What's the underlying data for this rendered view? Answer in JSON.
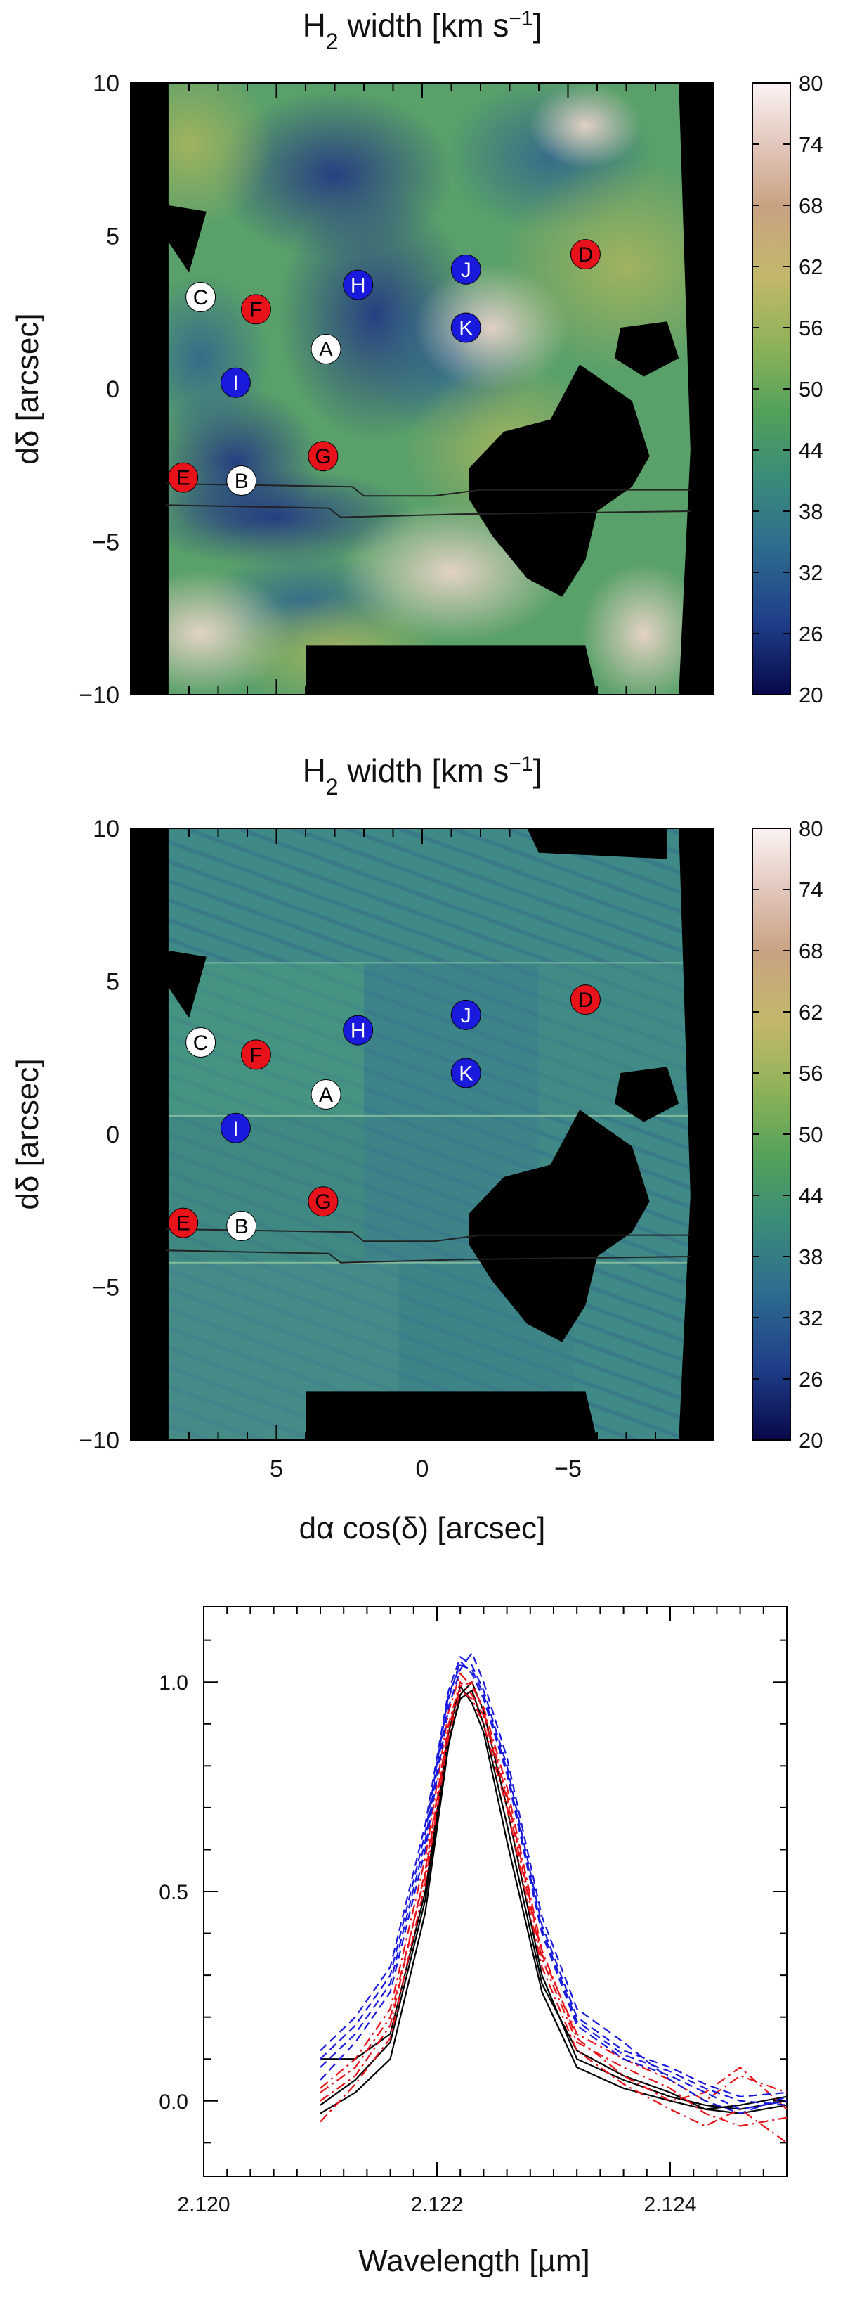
{
  "chart_data": [
    {
      "type": "heatmap",
      "title": "H₂ width [km s⁻¹]",
      "title_parts": {
        "pre": "H",
        "sub": "2",
        "mid": " width [km s",
        "sup": "−1",
        "post": "]"
      },
      "ylabel": "dδ [arcsec]",
      "xlabel": "",
      "xlim": [
        10,
        -10
      ],
      "ylim": [
        -10,
        10
      ],
      "x_ticks": [
        5,
        0,
        -5
      ],
      "y_ticks": [
        10,
        5,
        0,
        -5,
        -10
      ],
      "y_tick_labels": [
        "10",
        "5",
        "0",
        "−5",
        "−10"
      ],
      "colorbar": {
        "min": 20,
        "max": 80,
        "ticks": [
          80,
          74,
          68,
          62,
          56,
          50,
          44,
          38,
          32,
          26,
          20
        ]
      },
      "markers": [
        {
          "label": "A",
          "x": 3.3,
          "y": 1.3,
          "color": "#ffffff",
          "text_color": "#000000"
        },
        {
          "label": "B",
          "x": 6.2,
          "y": -3.0,
          "color": "#ffffff",
          "text_color": "#000000"
        },
        {
          "label": "C",
          "x": 7.6,
          "y": 3.0,
          "color": "#ffffff",
          "text_color": "#000000"
        },
        {
          "label": "D",
          "x": -5.6,
          "y": 4.4,
          "color": "#e8121a",
          "text_color": "#000000"
        },
        {
          "label": "E",
          "x": 8.2,
          "y": -2.9,
          "color": "#e8121a",
          "text_color": "#000000"
        },
        {
          "label": "F",
          "x": 5.7,
          "y": 2.6,
          "color": "#e8121a",
          "text_color": "#000000"
        },
        {
          "label": "G",
          "x": 3.4,
          "y": -2.2,
          "color": "#e8121a",
          "text_color": "#000000"
        },
        {
          "label": "H",
          "x": 2.2,
          "y": 3.4,
          "color": "#1a1adc",
          "text_color": "#ffffff"
        },
        {
          "label": "I",
          "x": 6.4,
          "y": 0.2,
          "color": "#1a1adc",
          "text_color": "#ffffff"
        },
        {
          "label": "J",
          "x": -1.5,
          "y": 3.9,
          "color": "#1a1adc",
          "text_color": "#ffffff"
        },
        {
          "label": "K",
          "x": -1.5,
          "y": 2.0,
          "color": "#1a1adc",
          "text_color": "#ffffff"
        }
      ]
    },
    {
      "type": "heatmap",
      "title": "H₂ width [km s⁻¹]",
      "title_parts": {
        "pre": "H",
        "sub": "2",
        "mid": " width [km s",
        "sup": "−1",
        "post": "]"
      },
      "ylabel": "dδ [arcsec]",
      "xlabel": "dα cos(δ) [arcsec]",
      "xlim": [
        10,
        -10
      ],
      "ylim": [
        -10,
        10
      ],
      "x_ticks": [
        5,
        0,
        -5
      ],
      "x_tick_labels": [
        "5",
        "0",
        "−5"
      ],
      "y_ticks": [
        10,
        5,
        0,
        -5,
        -10
      ],
      "y_tick_labels": [
        "10",
        "5",
        "0",
        "−5",
        "−10"
      ],
      "colorbar": {
        "min": 20,
        "max": 80,
        "ticks": [
          80,
          74,
          68,
          62,
          56,
          50,
          44,
          38,
          32,
          26,
          20
        ]
      },
      "markers": [
        {
          "label": "A",
          "x": 3.3,
          "y": 1.3,
          "color": "#ffffff",
          "text_color": "#000000"
        },
        {
          "label": "B",
          "x": 6.2,
          "y": -3.0,
          "color": "#ffffff",
          "text_color": "#000000"
        },
        {
          "label": "C",
          "x": 7.6,
          "y": 3.0,
          "color": "#ffffff",
          "text_color": "#000000"
        },
        {
          "label": "D",
          "x": -5.6,
          "y": 4.4,
          "color": "#e8121a",
          "text_color": "#000000"
        },
        {
          "label": "E",
          "x": 8.2,
          "y": -2.9,
          "color": "#e8121a",
          "text_color": "#000000"
        },
        {
          "label": "F",
          "x": 5.7,
          "y": 2.6,
          "color": "#e8121a",
          "text_color": "#000000"
        },
        {
          "label": "G",
          "x": 3.4,
          "y": -2.2,
          "color": "#e8121a",
          "text_color": "#000000"
        },
        {
          "label": "H",
          "x": 2.2,
          "y": 3.4,
          "color": "#1a1adc",
          "text_color": "#ffffff"
        },
        {
          "label": "I",
          "x": 6.4,
          "y": 0.2,
          "color": "#1a1adc",
          "text_color": "#ffffff"
        },
        {
          "label": "J",
          "x": -1.5,
          "y": 3.9,
          "color": "#1a1adc",
          "text_color": "#ffffff"
        },
        {
          "label": "K",
          "x": -1.5,
          "y": 2.0,
          "color": "#1a1adc",
          "text_color": "#ffffff"
        }
      ]
    },
    {
      "type": "line",
      "title": "",
      "xlabel": "Wavelength [µm]",
      "ylabel": "",
      "xlim": [
        2.12,
        2.125
      ],
      "ylim": [
        -0.18,
        1.18
      ],
      "x_ticks": [
        2.12,
        2.122,
        2.124
      ],
      "x_tick_labels": [
        "2.120",
        "2.122",
        "2.124"
      ],
      "y_ticks": [
        0.0,
        0.5,
        1.0
      ],
      "y_tick_labels": [
        "0.0",
        "0.5",
        "1.0"
      ],
      "grid": false,
      "x": [
        2.121,
        2.1213,
        2.1216,
        2.1219,
        2.1221,
        2.1222,
        2.1223,
        2.1224,
        2.1226,
        2.1229,
        2.1232,
        2.1236,
        2.124,
        2.1243,
        2.1246,
        2.125
      ],
      "series": [
        {
          "color": "#000000",
          "dash": "solid",
          "values": [
            -0.03,
            0.02,
            0.1,
            0.45,
            0.85,
            0.97,
            1.0,
            0.93,
            0.7,
            0.3,
            0.1,
            0.05,
            0.01,
            -0.01,
            -0.02,
            0.0
          ]
        },
        {
          "color": "#000000",
          "dash": "solid",
          "values": [
            0.1,
            0.1,
            0.16,
            0.5,
            0.88,
            0.99,
            0.95,
            0.88,
            0.62,
            0.26,
            0.08,
            0.03,
            0.0,
            -0.02,
            -0.03,
            -0.01
          ]
        },
        {
          "color": "#000000",
          "dash": "solid",
          "values": [
            -0.01,
            0.05,
            0.14,
            0.48,
            0.86,
            0.96,
            0.98,
            0.9,
            0.66,
            0.28,
            0.12,
            0.06,
            0.02,
            -0.02,
            -0.01,
            0.01
          ]
        },
        {
          "color": "#e8121a",
          "dash": "dashdot",
          "values": [
            0.0,
            0.06,
            0.18,
            0.55,
            0.9,
            1.0,
            0.97,
            0.92,
            0.72,
            0.34,
            0.14,
            0.08,
            0.03,
            -0.03,
            -0.06,
            -0.04
          ]
        },
        {
          "color": "#e8121a",
          "dash": "dashdot",
          "values": [
            0.03,
            0.1,
            0.22,
            0.58,
            0.93,
            1.02,
            0.99,
            0.94,
            0.75,
            0.36,
            0.15,
            0.06,
            0.0,
            0.02,
            0.08,
            -0.02
          ]
        },
        {
          "color": "#e8121a",
          "dash": "dashdot",
          "values": [
            -0.05,
            0.04,
            0.15,
            0.52,
            0.87,
            0.98,
            0.96,
            0.9,
            0.7,
            0.32,
            0.12,
            0.04,
            -0.02,
            -0.06,
            -0.02,
            -0.1
          ]
        },
        {
          "color": "#e8121a",
          "dash": "dashdot",
          "values": [
            0.02,
            0.08,
            0.2,
            0.54,
            0.89,
            0.99,
            1.0,
            0.93,
            0.73,
            0.35,
            0.16,
            0.1,
            0.05,
            0.0,
            0.06,
            0.02
          ]
        },
        {
          "color": "#1a1adc",
          "dash": "dashed",
          "values": [
            0.08,
            0.16,
            0.28,
            0.62,
            0.96,
            1.05,
            1.02,
            0.96,
            0.78,
            0.4,
            0.18,
            0.1,
            0.06,
            0.02,
            -0.02,
            0.0
          ]
        },
        {
          "color": "#1a1adc",
          "dash": "dashed",
          "values": [
            0.12,
            0.2,
            0.32,
            0.66,
            0.98,
            1.06,
            1.04,
            0.98,
            0.8,
            0.42,
            0.2,
            0.12,
            0.08,
            0.04,
            0.01,
            0.02
          ]
        },
        {
          "color": "#1a1adc",
          "dash": "dashed",
          "values": [
            0.05,
            0.14,
            0.26,
            0.6,
            0.94,
            1.03,
            1.07,
            1.0,
            0.82,
            0.44,
            0.22,
            0.14,
            0.05,
            0.0,
            -0.03,
            0.01
          ]
        },
        {
          "color": "#1a1adc",
          "dash": "dashed",
          "values": [
            0.1,
            0.18,
            0.3,
            0.64,
            0.97,
            1.04,
            1.03,
            0.97,
            0.79,
            0.41,
            0.19,
            0.11,
            0.07,
            0.03,
            0.0,
            -0.01
          ]
        }
      ]
    }
  ]
}
